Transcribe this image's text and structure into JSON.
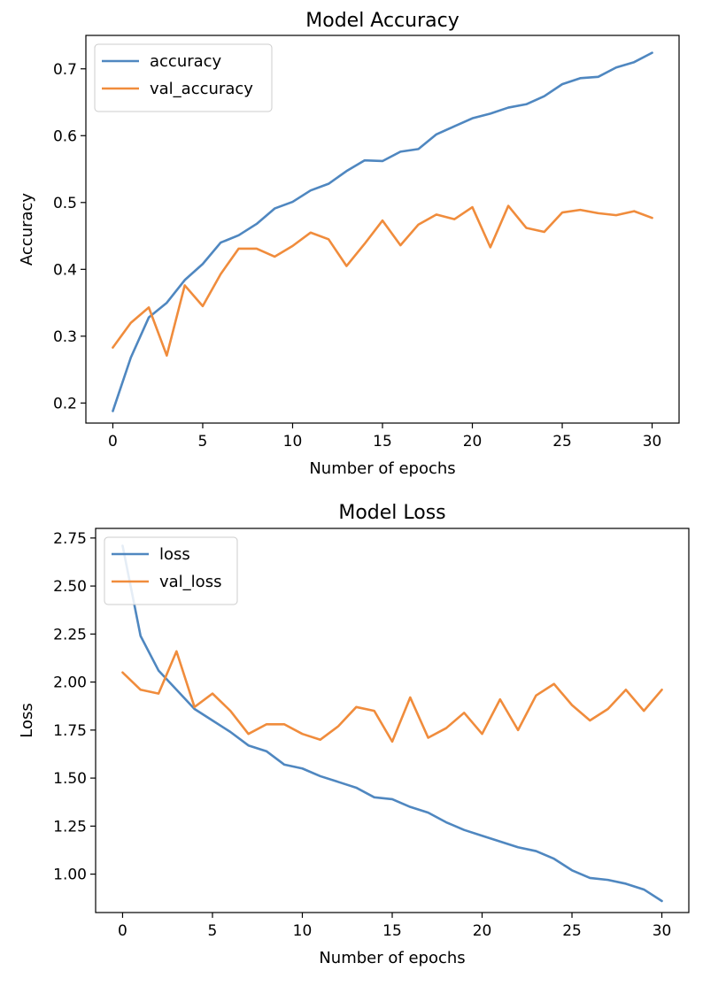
{
  "chart_data": [
    {
      "type": "line",
      "title": "Model Accuracy",
      "xlabel": "Number of epochs",
      "ylabel": "Accuracy",
      "xlim": [
        -1.5,
        31.5
      ],
      "ylim": [
        0.17,
        0.75
      ],
      "xticks": [
        0,
        5,
        10,
        15,
        20,
        25,
        30
      ],
      "yticks": [
        0.2,
        0.3,
        0.4,
        0.5,
        0.6,
        0.7
      ],
      "ytick_decimals": 1,
      "grid": false,
      "legend_position": "upper left",
      "x": [
        0,
        1,
        2,
        3,
        4,
        5,
        6,
        7,
        8,
        9,
        10,
        11,
        12,
        13,
        14,
        15,
        16,
        17,
        18,
        19,
        20,
        21,
        22,
        23,
        24,
        25,
        26,
        27,
        28,
        29,
        30
      ],
      "series": [
        {
          "name": "accuracy",
          "color": "#4f87c0",
          "values": [
            0.188,
            0.268,
            0.328,
            0.35,
            0.384,
            0.408,
            0.44,
            0.451,
            0.468,
            0.491,
            0.501,
            0.518,
            0.528,
            0.547,
            0.563,
            0.562,
            0.576,
            0.58,
            0.602,
            0.614,
            0.626,
            0.633,
            0.642,
            0.647,
            0.659,
            0.677,
            0.686,
            0.688,
            0.702,
            0.71,
            0.724
          ]
        },
        {
          "name": "val_accuracy",
          "color": "#f08c3c",
          "values": [
            0.283,
            0.32,
            0.343,
            0.271,
            0.376,
            0.345,
            0.393,
            0.431,
            0.431,
            0.419,
            0.435,
            0.455,
            0.445,
            0.405,
            0.438,
            0.473,
            0.436,
            0.467,
            0.482,
            0.475,
            0.493,
            0.433,
            0.495,
            0.462,
            0.456,
            0.485,
            0.489,
            0.484,
            0.481,
            0.487,
            0.477
          ]
        }
      ]
    },
    {
      "type": "line",
      "title": "Model Loss",
      "xlabel": "Number of epochs",
      "ylabel": "Loss",
      "xlim": [
        -1.5,
        31.5
      ],
      "ylim": [
        0.8,
        2.8
      ],
      "xticks": [
        0,
        5,
        10,
        15,
        20,
        25,
        30
      ],
      "yticks": [
        1.0,
        1.25,
        1.5,
        1.75,
        2.0,
        2.25,
        2.5,
        2.75
      ],
      "ytick_decimals": 2,
      "grid": false,
      "legend_position": "upper left",
      "x": [
        0,
        1,
        2,
        3,
        4,
        5,
        6,
        7,
        8,
        9,
        10,
        11,
        12,
        13,
        14,
        15,
        16,
        17,
        18,
        19,
        20,
        21,
        22,
        23,
        24,
        25,
        26,
        27,
        28,
        29,
        30
      ],
      "series": [
        {
          "name": "loss",
          "color": "#4f87c0",
          "values": [
            2.71,
            2.24,
            2.06,
            1.96,
            1.86,
            1.8,
            1.74,
            1.67,
            1.64,
            1.57,
            1.55,
            1.51,
            1.48,
            1.45,
            1.4,
            1.39,
            1.35,
            1.32,
            1.27,
            1.23,
            1.2,
            1.17,
            1.14,
            1.12,
            1.08,
            1.02,
            0.98,
            0.97,
            0.95,
            0.92,
            0.86
          ]
        },
        {
          "name": "val_loss",
          "color": "#f08c3c",
          "values": [
            2.05,
            1.96,
            1.94,
            2.16,
            1.87,
            1.94,
            1.85,
            1.73,
            1.78,
            1.78,
            1.73,
            1.7,
            1.77,
            1.87,
            1.85,
            1.69,
            1.92,
            1.71,
            1.76,
            1.84,
            1.73,
            1.91,
            1.75,
            1.93,
            1.99,
            1.88,
            1.8,
            1.86,
            1.96,
            1.85,
            1.96
          ]
        }
      ]
    }
  ]
}
